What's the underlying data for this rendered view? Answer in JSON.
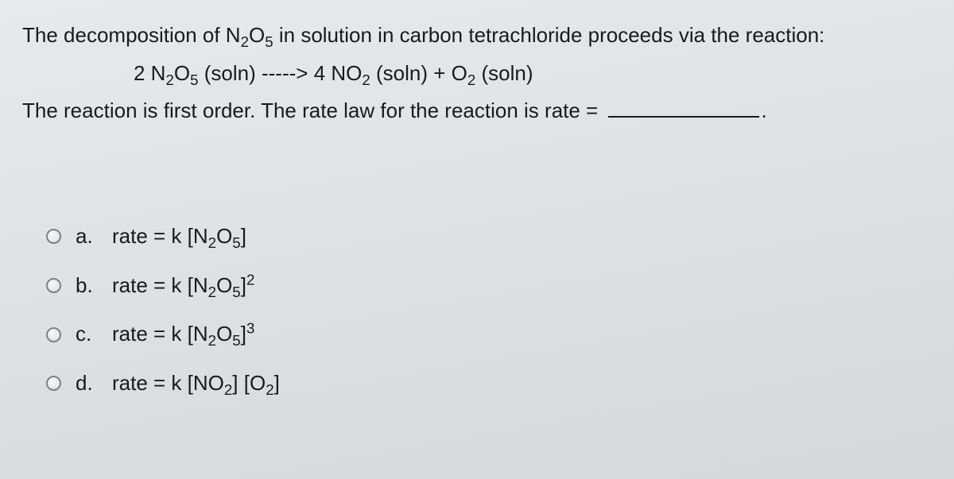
{
  "stem": {
    "line1_pre": "The decomposition of N",
    "line1_post": " in solution in carbon tetrachloride proceeds via the reaction:",
    "eqn_lhs_coeff": "2 N",
    "eqn_arrow": " -----> ",
    "eqn_rhs1": "4 NO",
    "eqn_plus": " + O",
    "soln_label": " (soln)",
    "line3_a": "The reaction is first order.  The rate law for the reaction is rate = ",
    "dot": "."
  },
  "letters": {
    "a": "a.",
    "b": "b.",
    "c": "c.",
    "d": "d."
  },
  "choices": {
    "a_pre": "rate = k [N",
    "a_post": "]",
    "b_pre": "rate = k [N",
    "b_post": "]",
    "c_pre": "rate = k [N",
    "c_post": "]",
    "d_pre": "rate = k [NO",
    "d_mid": "] [O",
    "d_post": "]"
  },
  "subs": {
    "two": "2",
    "five": "5",
    "twentyfive": "2",
    "five2": "5"
  },
  "sups": {
    "sq": "2",
    "cu": "3"
  }
}
